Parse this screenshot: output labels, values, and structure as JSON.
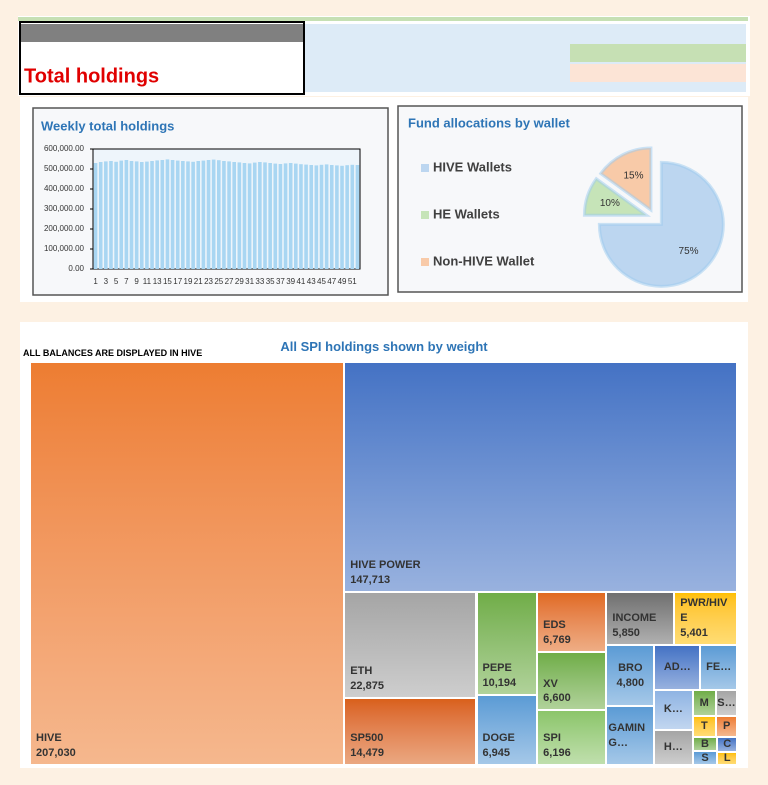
{
  "header": {
    "title": "Total holdings"
  },
  "chart_data": [
    {
      "type": "bar",
      "title": "Weekly total holdings",
      "categories": [
        1,
        null,
        3,
        null,
        5,
        null,
        7,
        null,
        9,
        null,
        11,
        null,
        13,
        null,
        15,
        null,
        17,
        null,
        19,
        null,
        21,
        null,
        23,
        null,
        25,
        null,
        27,
        null,
        29,
        null,
        31,
        null,
        33,
        null,
        35,
        null,
        37,
        null,
        39,
        null,
        41,
        null,
        43,
        null,
        45,
        null,
        47,
        null,
        49,
        null,
        51,
        null
      ],
      "values": [
        530000,
        535000,
        538000,
        540000,
        536000,
        542000,
        545000,
        540000,
        538000,
        535000,
        537000,
        540000,
        543000,
        545000,
        548000,
        545000,
        542000,
        540000,
        538000,
        536000,
        540000,
        542000,
        545000,
        547000,
        544000,
        540000,
        538000,
        535000,
        533000,
        530000,
        528000,
        532000,
        535000,
        533000,
        530000,
        527000,
        525000,
        528000,
        530000,
        527000,
        524000,
        522000,
        520000,
        518000,
        521000,
        523000,
        520000,
        518000,
        516000,
        519000,
        521000,
        520000
      ],
      "color": "#a9d6f2",
      "ylim": [
        0,
        600000
      ],
      "yticks": [
        {
          "value": 0,
          "label": "0.00"
        },
        {
          "value": 100000,
          "label": "100,000.00"
        },
        {
          "value": 200000,
          "label": "200,000.00"
        },
        {
          "value": 300000,
          "label": "300,000.00"
        },
        {
          "value": 400000,
          "label": "400,000.00"
        },
        {
          "value": 500000,
          "label": "500,000.00"
        },
        {
          "value": 600000,
          "label": "600,000.00"
        }
      ],
      "grid": false
    },
    {
      "type": "pie",
      "title": "Fund allocations by wallet",
      "categories": [
        "HIVE Wallets",
        "HE Wallets",
        "Non-HIVE Wallet"
      ],
      "values": [
        75,
        10,
        15
      ],
      "value_labels": [
        "75%",
        "10%",
        "15%"
      ],
      "colors": [
        "#bcd6f0",
        "#c6e4b8",
        "#f8caa8"
      ]
    },
    {
      "type": "treemap",
      "title": "All SPI holdings shown by weight",
      "subtitle": "ALL BALANCES ARE DISPLAYED IN HIVE",
      "categories": [
        "HIVE",
        "HIVE POWER",
        "ETH",
        "SP500",
        "PEPE",
        "DOGE",
        "EDS",
        "XV",
        "SPI",
        "INCOME",
        "PWR/HIVE",
        "BRO",
        "GAMING…",
        "AD…",
        "FE…",
        "K…",
        "H…",
        "M",
        "S…",
        "T",
        "P",
        "B",
        "S",
        "C",
        "L"
      ],
      "values": [
        207030,
        147713,
        22875,
        14479,
        10194,
        6945,
        6769,
        6600,
        6196,
        5850,
        5401,
        4800,
        4600,
        3400,
        2700,
        2500,
        2200,
        1000,
        900,
        800,
        700,
        600,
        550,
        500,
        400
      ],
      "value_labels": [
        "207,030",
        "147,713",
        "22,875",
        "14,479",
        "10,194",
        "6,945",
        "6,769",
        "6,600",
        "6,196",
        "5,850",
        "5,401",
        "4,800",
        null,
        null,
        null,
        null,
        null,
        null,
        null,
        null,
        null,
        null,
        null,
        null,
        null
      ],
      "colors": [
        "#ed7d31",
        "#4472c4",
        "#a5a5a5",
        "#d9601a",
        "#70ad47",
        "#5b9bd5",
        "#e06a20",
        "#70ad47",
        "#8cc56a",
        "#707070",
        "#ffc000",
        "#5b9bd5",
        "#5b9bd5",
        "#4472c4",
        "#5b9bd5",
        "#8fb4e3",
        "#a5a5a5",
        "#70ad47",
        "#a5a5a5",
        "#ffc000",
        "#ed7d31",
        "#70ad47",
        "#5b9bd5",
        "#4472c4",
        "#ffc000"
      ]
    }
  ]
}
